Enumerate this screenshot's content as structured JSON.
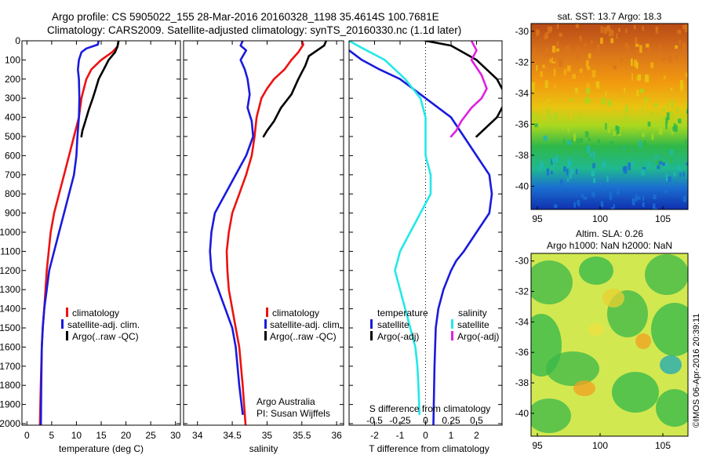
{
  "header": {
    "title_line1": "Argo profile: CS 5905022_155 28-Mar-2016 20160328_1198 35.4614S 100.7681E",
    "title_line2": "Climatology: CARS2009. Satellite-adjusted climatology: synTS_20160330.nc (1.1d later)"
  },
  "colors": {
    "climatology": "#ee1111",
    "satellite": "#1a1add",
    "argo": "#000000",
    "s_satellite": "#22e8e8",
    "s_argo": "#e020e0"
  },
  "chart_data": [
    {
      "id": "temperature",
      "type": "line",
      "xlabel": "temperature (deg C)",
      "ylabel": "",
      "xlim": [
        -1,
        31
      ],
      "ylim": [
        2050,
        0
      ],
      "xticks": [
        "0",
        "5",
        "10",
        "15",
        "20",
        "25",
        "30"
      ],
      "yticks": [
        "0",
        "100",
        "200",
        "300",
        "400",
        "500",
        "600",
        "700",
        "800",
        "900",
        "1000",
        "1100",
        "1200",
        "1300",
        "1400",
        "1500",
        "1600",
        "1700",
        "1800",
        "1900",
        "2000"
      ],
      "legend": [
        "climatology",
        "satellite-adj. clim.",
        "Argo(..raw -QC)"
      ],
      "series": [
        {
          "name": "climatology",
          "x": [
            18.5,
            18.3,
            17.2,
            15,
            13,
            12,
            11.5,
            11,
            10.5,
            9.5,
            8.5,
            7.5,
            6.5,
            5.5,
            4.8,
            4,
            3.5,
            3.2,
            3,
            2.8,
            2.7,
            2.6
          ],
          "y": [
            0,
            30,
            60,
            100,
            150,
            200,
            250,
            300,
            400,
            500,
            600,
            700,
            800,
            900,
            1000,
            1200,
            1400,
            1500,
            1600,
            1800,
            1900,
            2050
          ]
        },
        {
          "name": "satellite-adj. clim.",
          "x": [
            14.5,
            14.3,
            12,
            11,
            10.5,
            10.3,
            10.5,
            10.6,
            10.5,
            10.2,
            10,
            9.5,
            8.5,
            7.5,
            6.5,
            5.5,
            4.5,
            4,
            3.5,
            3.2,
            3,
            2.9,
            2.8
          ],
          "y": [
            0,
            20,
            40,
            60,
            100,
            150,
            200,
            300,
            400,
            500,
            600,
            700,
            800,
            900,
            1000,
            1100,
            1200,
            1300,
            1400,
            1500,
            1600,
            1800,
            2050
          ]
        },
        {
          "name": "Argo(..raw -QC)",
          "x": [
            18.5,
            18.3,
            17.8,
            16.5,
            15.5,
            14.5,
            13.8,
            13.3,
            12.5,
            11.8,
            11.2,
            11
          ],
          "y": [
            0,
            30,
            60,
            100,
            150,
            200,
            260,
            300,
            360,
            420,
            470,
            500
          ]
        }
      ]
    },
    {
      "id": "salinity",
      "type": "line",
      "xlabel": "salinity",
      "ylabel": "",
      "xlim": [
        33.8,
        36.1
      ],
      "ylim": [
        2050,
        0
      ],
      "xticks": [
        "34",
        "34.5",
        "35",
        "35.5",
        "36"
      ],
      "legend": [
        "climatology",
        "satellite-adj. clim.",
        "Argo(..raw -QC)"
      ],
      "series": [
        {
          "name": "climatology",
          "x": [
            35.5,
            35.52,
            35.45,
            35.35,
            35.25,
            35.1,
            35,
            34.92,
            34.85,
            34.82,
            34.78,
            34.7,
            34.6,
            34.5,
            34.45,
            34.42,
            34.43,
            34.45,
            34.5,
            34.55,
            34.6,
            34.65,
            34.7
          ],
          "y": [
            0,
            20,
            60,
            100,
            150,
            200,
            250,
            300,
            400,
            500,
            600,
            700,
            800,
            900,
            1000,
            1100,
            1200,
            1300,
            1400,
            1500,
            1600,
            1800,
            2050
          ]
        },
        {
          "name": "satellite-adj. clim.",
          "x": [
            34.65,
            34.62,
            34.7,
            34.62,
            34.68,
            34.72,
            34.75,
            34.72,
            34.78,
            34.8,
            34.7,
            34.55,
            34.4,
            34.25,
            34.2,
            34.18,
            34.2,
            34.3,
            34.4,
            34.5,
            34.55,
            34.6,
            34.65
          ],
          "y": [
            0,
            25,
            50,
            100,
            150,
            200,
            280,
            350,
            420,
            500,
            600,
            700,
            800,
            900,
            1000,
            1100,
            1200,
            1300,
            1400,
            1500,
            1600,
            1800,
            1950
          ]
        },
        {
          "name": "Argo(..raw -QC)",
          "x": [
            35.85,
            35.82,
            35.6,
            35.55,
            35.45,
            35.35,
            35.2,
            35.1,
            35,
            34.95
          ],
          "y": [
            0,
            25,
            80,
            130,
            200,
            280,
            350,
            420,
            470,
            500
          ]
        }
      ],
      "annotation": [
        "Argo Australia",
        "PI: Susan Wijffels"
      ]
    },
    {
      "id": "difference",
      "type": "line",
      "xlabel": "T difference from climatology",
      "x2label": "S difference from climatology",
      "ylabel": "",
      "xlim": [
        -3,
        3
      ],
      "ylim": [
        2050,
        0
      ],
      "xticks": [
        "-2",
        "-1",
        "0",
        "1",
        "2"
      ],
      "x2ticks": [
        "-0.5",
        "-0.25",
        "0",
        "0.25",
        "0.5"
      ],
      "legend_titles": [
        "temperature",
        "salinity"
      ],
      "legend": [
        "satellite",
        "Argo(-adj)",
        "satellite",
        "Argo(-adj)"
      ],
      "series": [
        {
          "name": "temperature satellite",
          "x": [
            -3.3,
            -3,
            -2.5,
            -1.8,
            -1,
            -0.5,
            0,
            0.5,
            1,
            1.5,
            2,
            2.5,
            2.6,
            2.5,
            2,
            1.5,
            1.2,
            1,
            0.7,
            0.5,
            0.4,
            0.35,
            0.3
          ],
          "y": [
            0,
            50,
            100,
            150,
            200,
            250,
            300,
            350,
            400,
            500,
            600,
            700,
            800,
            900,
            1000,
            1100,
            1150,
            1200,
            1300,
            1400,
            1500,
            1700,
            2050
          ]
        },
        {
          "name": "temperature Argo(-adj)",
          "x": [
            0,
            1,
            2,
            2.8,
            3.2,
            2.8,
            2
          ],
          "y": [
            0,
            25,
            100,
            200,
            300,
            400,
            500
          ]
        },
        {
          "name": "salinity satellite",
          "x": [
            -0.75,
            -0.65,
            -0.4,
            -0.2,
            -0.05,
            0,
            0,
            0,
            0.05,
            0.05,
            -0.05,
            -0.15,
            -0.25,
            -0.3,
            -0.25,
            -0.2,
            -0.15,
            -0.1,
            -0.08,
            -0.07,
            -0.06
          ],
          "y": [
            0,
            30,
            100,
            200,
            300,
            400,
            500,
            600,
            700,
            800,
            900,
            1000,
            1100,
            1200,
            1300,
            1400,
            1500,
            1600,
            1700,
            1800,
            1950
          ]
        },
        {
          "name": "salinity Argo(-adj)",
          "x": [
            0.45,
            0.5,
            0.45,
            0.55,
            0.6,
            0.55,
            0.45,
            0.35,
            0.3,
            0.25
          ],
          "y": [
            0,
            50,
            100,
            180,
            250,
            300,
            350,
            420,
            470,
            500
          ]
        }
      ]
    },
    {
      "id": "sst-map",
      "type": "heatmap",
      "title": "sat. SST: 13.7  Argo: 18.3",
      "xlim": [
        94.5,
        107
      ],
      "ylim": [
        -41.5,
        -29.5
      ],
      "xticks": [
        "95",
        "100",
        "105"
      ],
      "yticks": [
        "-30",
        "-32",
        "-34",
        "-36",
        "-38",
        "-40"
      ]
    },
    {
      "id": "sla-map",
      "type": "heatmap",
      "title_line1": "Altim. SLA: 0.26",
      "title_line2": "Argo h1000: NaN h2000: NaN",
      "xlim": [
        94.5,
        107
      ],
      "ylim": [
        -41.5,
        -29.5
      ],
      "xticks": [
        "95",
        "100",
        "105"
      ],
      "yticks": [
        "-30",
        "-32",
        "-34",
        "-36",
        "-38",
        "-40"
      ]
    }
  ],
  "footer": {
    "credit": "©IMOS 06-Apr-2016 20:39:11"
  }
}
